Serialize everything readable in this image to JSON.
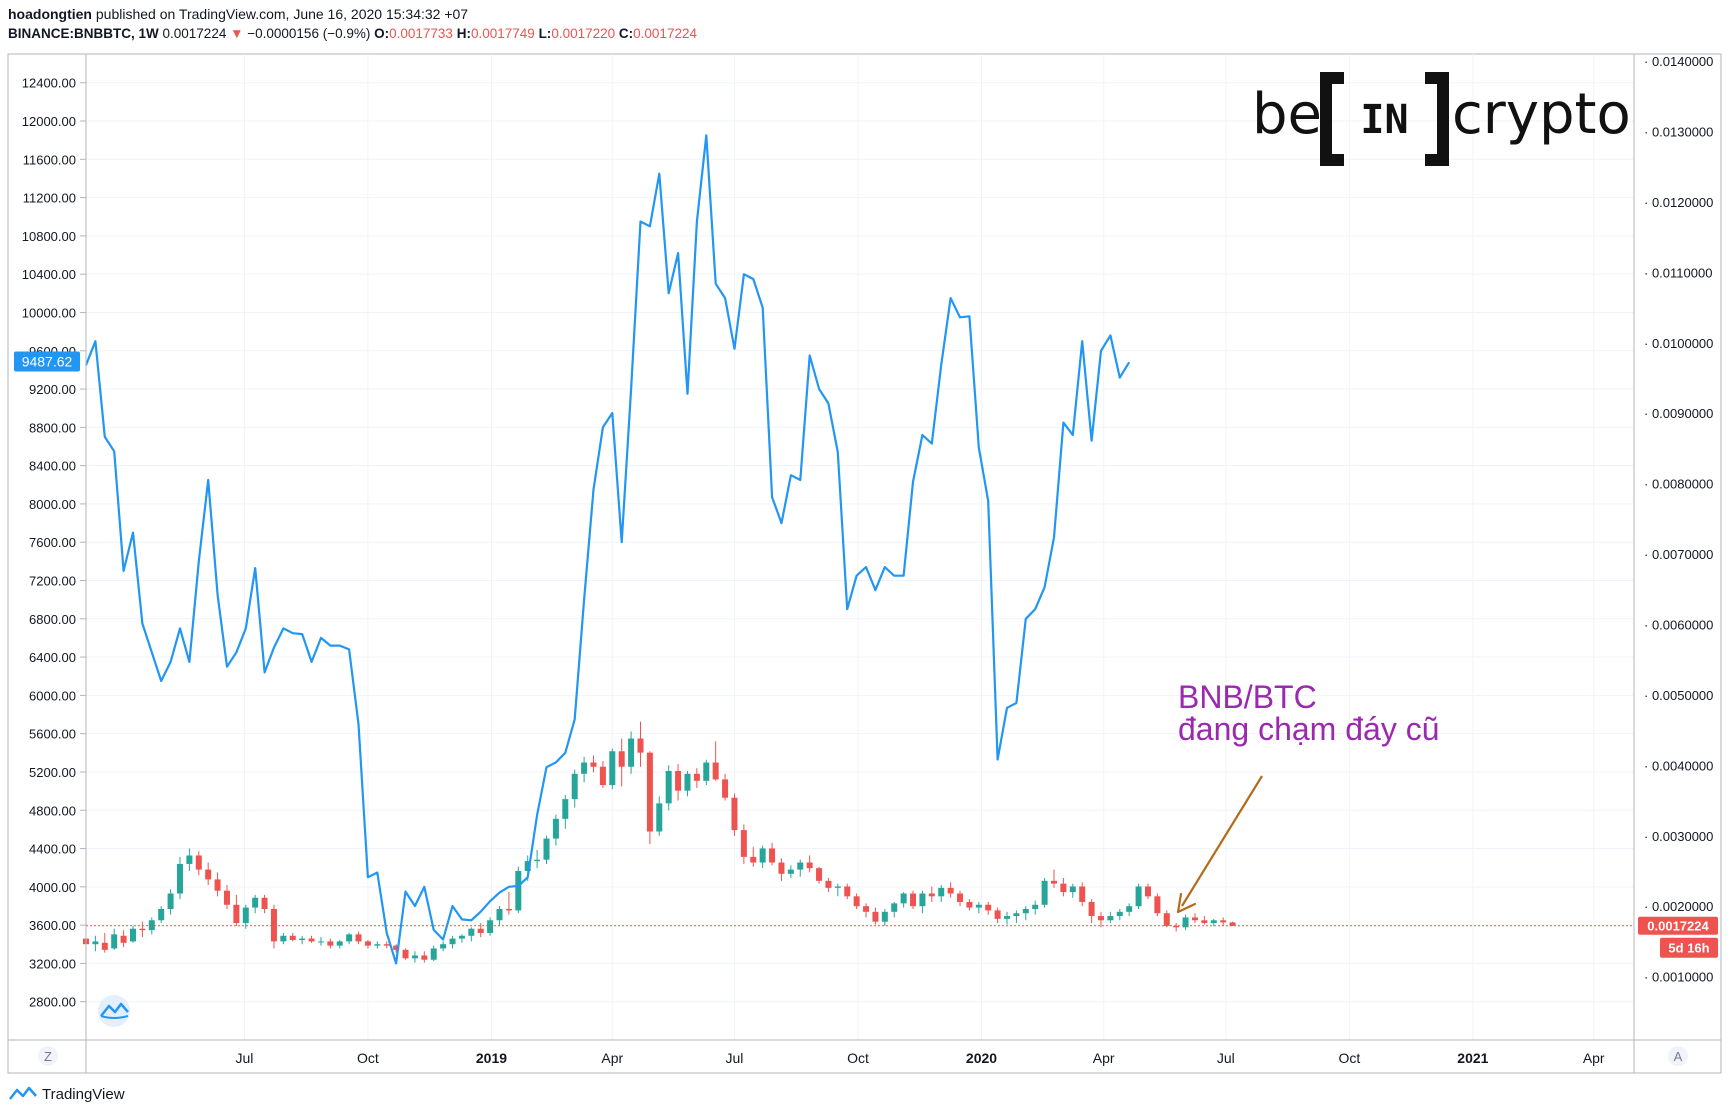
{
  "header": {
    "author": "hoadongtien",
    "published": "published on TradingView.com, June 16, 2020 15:34:32 +07",
    "symbol": "BINANCE:BNBBTC, 1W",
    "last": "0.0017224",
    "change_arrow": "▼",
    "change": "−0.0000156 (−0.9%)",
    "o_label": "O:",
    "o_value": "0.0017733",
    "h_label": "H:",
    "h_value": "0.0017749",
    "l_label": "L:",
    "l_value": "0.0017220",
    "c_label": "C:",
    "c_value": "0.0017224"
  },
  "logo": {
    "text": "be[IN]crypto",
    "left": "be",
    "middle": "IN",
    "right": "crypto"
  },
  "annotation": {
    "line1": "BNB/BTC",
    "line2": "đang chạm đáy cũ",
    "color": "#9c27b0",
    "arrow_color": "#b26b1a"
  },
  "axis_buttons": {
    "left": "Z",
    "right": "A"
  },
  "footer": {
    "brand": "TradingView"
  },
  "colors": {
    "btc_line": "#2196f3",
    "up": "#26a69a",
    "down": "#ef5350",
    "price_line": "#ef5350",
    "grid": "#f0f3fa"
  },
  "chart_data": {
    "type": "line",
    "time_range": [
      "2018-03-05",
      "2021-05-01"
    ],
    "x_ticks": [
      {
        "label": "Jul",
        "date": "2018-07-01"
      },
      {
        "label": "Oct",
        "date": "2018-10-01"
      },
      {
        "label": "2019",
        "date": "2019-01-01",
        "bold": true
      },
      {
        "label": "Apr",
        "date": "2019-04-01"
      },
      {
        "label": "Jul",
        "date": "2019-07-01"
      },
      {
        "label": "Oct",
        "date": "2019-10-01"
      },
      {
        "label": "2020",
        "date": "2020-01-01",
        "bold": true
      },
      {
        "label": "Apr",
        "date": "2020-04-01"
      },
      {
        "label": "Jul",
        "date": "2020-07-01"
      },
      {
        "label": "Oct",
        "date": "2020-10-01"
      },
      {
        "label": "2021",
        "date": "2021-01-01",
        "bold": true
      },
      {
        "label": "Apr",
        "date": "2021-04-01"
      }
    ],
    "left_axis": {
      "ticks": [
        "12400.00",
        "12000.00",
        "11600.00",
        "11200.00",
        "10800.00",
        "10400.00",
        "10000.00",
        "9600.00",
        "9200.00",
        "8800.00",
        "8400.00",
        "8000.00",
        "7600.00",
        "7200.00",
        "6800.00",
        "6400.00",
        "6000.00",
        "5600.00",
        "5200.00",
        "4800.00",
        "4400.00",
        "4000.00",
        "3600.00",
        "3200.00",
        "2800.00"
      ],
      "range": [
        2400,
        12700
      ],
      "current_label": "9487.62"
    },
    "right_axis": {
      "ticks": [
        "0.0140000",
        "0.0130000",
        "0.0120000",
        "0.0110000",
        "0.0100000",
        "0.0090000",
        "0.0080000",
        "0.0070000",
        "0.0060000",
        "0.0050000",
        "0.0040000",
        "0.0030000",
        "0.0020000",
        "0.0010000"
      ],
      "range": [
        0.0001,
        0.0141
      ],
      "current_label": "0.0017224",
      "countdown_label": "5d 16h"
    },
    "series": [
      {
        "name": "BTC",
        "axis": "left",
        "start": "2018-03-05",
        "step_days": 7,
        "values": [
          9450,
          9700,
          8700,
          8550,
          7300,
          7700,
          6750,
          6450,
          6150,
          6350,
          6700,
          6350,
          7400,
          8250,
          7050,
          6300,
          6450,
          6700,
          7330,
          6240,
          6500,
          6700,
          6650,
          6640,
          6350,
          6600,
          6520,
          6520,
          6480,
          5700,
          4100,
          4150,
          3520,
          3200,
          3950,
          3800,
          4000,
          3550,
          3450,
          3800,
          3660,
          3650,
          3740,
          3850,
          3940,
          4000,
          4010,
          4100,
          4750,
          5250,
          5300,
          5400,
          5750,
          7000,
          8150,
          8800,
          8950,
          7600,
          9200,
          10950,
          10900,
          11450,
          10200,
          10620,
          9150,
          10950,
          11850,
          10300,
          10150,
          9620,
          10400,
          10350,
          10050,
          8070,
          7800,
          8300,
          8250,
          9550,
          9200,
          9050,
          8540,
          6900,
          7250,
          7340,
          7100,
          7340,
          7250,
          7250,
          8230,
          8720,
          8630,
          9450,
          10150,
          9950,
          9960,
          8590,
          8030,
          5330,
          5870,
          5920,
          6800,
          6900,
          7130,
          7650,
          8850,
          8720,
          9700,
          8660,
          9600,
          9760,
          9320,
          9480
        ]
      },
      {
        "name": "BNB/BTC",
        "axis": "right",
        "type": "candlestick",
        "start": "2018-03-05",
        "step_days": 7,
        "ohlc": [
          [
            0.00154,
            0.00162,
            0.00138,
            0.00146
          ],
          [
            0.00146,
            0.00158,
            0.00136,
            0.0015
          ],
          [
            0.00148,
            0.00162,
            0.00134,
            0.00138
          ],
          [
            0.0014,
            0.00168,
            0.00138,
            0.0016
          ],
          [
            0.00158,
            0.00166,
            0.00142,
            0.00148
          ],
          [
            0.0015,
            0.00172,
            0.00148,
            0.00168
          ],
          [
            0.00168,
            0.00178,
            0.00156,
            0.00166
          ],
          [
            0.00166,
            0.00184,
            0.0016,
            0.0018
          ],
          [
            0.0018,
            0.002,
            0.00176,
            0.00196
          ],
          [
            0.00196,
            0.00224,
            0.00188,
            0.00218
          ],
          [
            0.00218,
            0.0027,
            0.0021,
            0.0026
          ],
          [
            0.0026,
            0.00282,
            0.0025,
            0.00272
          ],
          [
            0.00272,
            0.00278,
            0.00244,
            0.00252
          ],
          [
            0.00252,
            0.00262,
            0.0023,
            0.00238
          ],
          [
            0.00238,
            0.00248,
            0.00214,
            0.00222
          ],
          [
            0.00222,
            0.0023,
            0.00196,
            0.00202
          ],
          [
            0.00202,
            0.00216,
            0.00172,
            0.00176
          ],
          [
            0.00176,
            0.00202,
            0.00168,
            0.00198
          ],
          [
            0.00198,
            0.00216,
            0.0019,
            0.00212
          ],
          [
            0.00212,
            0.00216,
            0.0019,
            0.00196
          ],
          [
            0.00196,
            0.00202,
            0.0014,
            0.0015
          ],
          [
            0.0015,
            0.00162,
            0.00146,
            0.00158
          ],
          [
            0.00158,
            0.00162,
            0.0015,
            0.00152
          ],
          [
            0.00152,
            0.00158,
            0.00146,
            0.00154
          ],
          [
            0.00154,
            0.00158,
            0.00148,
            0.0015
          ],
          [
            0.0015,
            0.00156,
            0.00144,
            0.0015
          ],
          [
            0.0015,
            0.00154,
            0.0014,
            0.00144
          ],
          [
            0.00144,
            0.00152,
            0.0014,
            0.0015
          ],
          [
            0.0015,
            0.00162,
            0.00146,
            0.0016
          ],
          [
            0.0016,
            0.00164,
            0.00146,
            0.0015
          ],
          [
            0.0015,
            0.00152,
            0.0014,
            0.00144
          ],
          [
            0.00144,
            0.0015,
            0.0014,
            0.00146
          ],
          [
            0.00146,
            0.0015,
            0.0014,
            0.00144
          ],
          [
            0.00144,
            0.00146,
            0.00134,
            0.00138
          ],
          [
            0.00138,
            0.0014,
            0.00124,
            0.00126
          ],
          [
            0.00126,
            0.00136,
            0.0012,
            0.0013
          ],
          [
            0.0013,
            0.00136,
            0.0012,
            0.00124
          ],
          [
            0.00124,
            0.00144,
            0.00122,
            0.0014
          ],
          [
            0.0014,
            0.0015,
            0.00136,
            0.00146
          ],
          [
            0.00146,
            0.00158,
            0.0014,
            0.00154
          ],
          [
            0.00154,
            0.0016,
            0.00148,
            0.00158
          ],
          [
            0.00158,
            0.0017,
            0.0015,
            0.00168
          ],
          [
            0.00168,
            0.00176,
            0.00156,
            0.00162
          ],
          [
            0.00162,
            0.00184,
            0.00158,
            0.0018
          ],
          [
            0.0018,
            0.002,
            0.00172,
            0.00196
          ],
          [
            0.00196,
            0.0022,
            0.00188,
            0.00194
          ],
          [
            0.00194,
            0.00256,
            0.0019,
            0.0025
          ],
          [
            0.0025,
            0.00272,
            0.00236,
            0.00264
          ],
          [
            0.00264,
            0.0028,
            0.00254,
            0.00266
          ],
          [
            0.00266,
            0.003,
            0.0026,
            0.00296
          ],
          [
            0.00296,
            0.0033,
            0.00286,
            0.00324
          ],
          [
            0.00324,
            0.00358,
            0.0031,
            0.00352
          ],
          [
            0.00352,
            0.00394,
            0.0034,
            0.00388
          ],
          [
            0.00388,
            0.00412,
            0.00376,
            0.00404
          ],
          [
            0.00404,
            0.00414,
            0.0039,
            0.00398
          ],
          [
            0.00398,
            0.00406,
            0.00368,
            0.00372
          ],
          [
            0.00372,
            0.00424,
            0.00366,
            0.0042
          ],
          [
            0.0042,
            0.00438,
            0.0037,
            0.00398
          ],
          [
            0.00398,
            0.00448,
            0.00388,
            0.00438
          ],
          [
            0.00438,
            0.00462,
            0.00398,
            0.00418
          ],
          [
            0.00418,
            0.0042,
            0.00288,
            0.00306
          ],
          [
            0.00306,
            0.00356,
            0.003,
            0.00346
          ],
          [
            0.00346,
            0.004,
            0.00336,
            0.00392
          ],
          [
            0.00392,
            0.00402,
            0.0035,
            0.00364
          ],
          [
            0.00364,
            0.00392,
            0.00356,
            0.00388
          ],
          [
            0.00388,
            0.00396,
            0.00368,
            0.00378
          ],
          [
            0.00378,
            0.00408,
            0.00372,
            0.00404
          ],
          [
            0.00404,
            0.00434,
            0.00378,
            0.0038
          ],
          [
            0.0038,
            0.00388,
            0.0035,
            0.00354
          ],
          [
            0.00354,
            0.0036,
            0.003,
            0.00308
          ],
          [
            0.00308,
            0.00316,
            0.0026,
            0.0027
          ],
          [
            0.0027,
            0.00284,
            0.00256,
            0.00262
          ],
          [
            0.00262,
            0.00286,
            0.00254,
            0.00282
          ],
          [
            0.00282,
            0.0029,
            0.00258,
            0.00262
          ],
          [
            0.00262,
            0.00268,
            0.00236,
            0.00246
          ],
          [
            0.00246,
            0.00258,
            0.0024,
            0.00252
          ],
          [
            0.00252,
            0.00266,
            0.00242,
            0.00262
          ],
          [
            0.00262,
            0.00272,
            0.00248,
            0.00254
          ],
          [
            0.00254,
            0.00256,
            0.00232,
            0.00236
          ],
          [
            0.00236,
            0.0024,
            0.0022,
            0.00226
          ],
          [
            0.00226,
            0.00232,
            0.00214,
            0.00228
          ],
          [
            0.00228,
            0.00232,
            0.0021,
            0.00214
          ],
          [
            0.00214,
            0.00218,
            0.00196,
            0.002
          ],
          [
            0.002,
            0.00204,
            0.00184,
            0.00192
          ],
          [
            0.00192,
            0.00198,
            0.00174,
            0.00178
          ],
          [
            0.00178,
            0.00196,
            0.00172,
            0.00192
          ],
          [
            0.00192,
            0.00206,
            0.00184,
            0.00204
          ],
          [
            0.00204,
            0.0022,
            0.00198,
            0.00218
          ],
          [
            0.00218,
            0.00222,
            0.00196,
            0.002
          ],
          [
            0.002,
            0.00222,
            0.0019,
            0.00218
          ],
          [
            0.00218,
            0.00228,
            0.00206,
            0.00214
          ],
          [
            0.00214,
            0.0023,
            0.00206,
            0.00226
          ],
          [
            0.00226,
            0.00234,
            0.00212,
            0.00218
          ],
          [
            0.00218,
            0.00222,
            0.002,
            0.00206
          ],
          [
            0.00206,
            0.0021,
            0.00194,
            0.00198
          ],
          [
            0.00198,
            0.00206,
            0.0019,
            0.00202
          ],
          [
            0.00202,
            0.00206,
            0.00188,
            0.00194
          ],
          [
            0.00194,
            0.00198,
            0.00176,
            0.00182
          ],
          [
            0.00182,
            0.00192,
            0.00174,
            0.00186
          ],
          [
            0.00186,
            0.00194,
            0.00176,
            0.0019
          ],
          [
            0.0019,
            0.002,
            0.0018,
            0.00196
          ],
          [
            0.00196,
            0.00208,
            0.00188,
            0.00202
          ],
          [
            0.00202,
            0.0024,
            0.00198,
            0.00236
          ],
          [
            0.00236,
            0.00252,
            0.00226,
            0.00232
          ],
          [
            0.00232,
            0.0024,
            0.00214,
            0.0022
          ],
          [
            0.0022,
            0.00232,
            0.00212,
            0.00228
          ],
          [
            0.00228,
            0.00234,
            0.002,
            0.00206
          ],
          [
            0.00206,
            0.0021,
            0.00176,
            0.00186
          ],
          [
            0.00186,
            0.00192,
            0.0017,
            0.0018
          ],
          [
            0.0018,
            0.00192,
            0.00176,
            0.00186
          ],
          [
            0.00186,
            0.00196,
            0.0018,
            0.00192
          ],
          [
            0.00192,
            0.00204,
            0.00186,
            0.002
          ],
          [
            0.002,
            0.00232,
            0.00196,
            0.00228
          ],
          [
            0.00228,
            0.00232,
            0.0021,
            0.00214
          ],
          [
            0.00214,
            0.00218,
            0.00186,
            0.0019
          ],
          [
            0.0019,
            0.00194,
            0.0017,
            0.00172
          ],
          [
            0.00172,
            0.00176,
            0.00164,
            0.0017
          ],
          [
            0.0017,
            0.00188,
            0.00166,
            0.00184
          ],
          [
            0.00184,
            0.0019,
            0.00176,
            0.0018
          ],
          [
            0.0018,
            0.00186,
            0.00174,
            0.00176
          ],
          [
            0.00176,
            0.00182,
            0.00172,
            0.0018
          ],
          [
            0.0018,
            0.00184,
            0.00172,
            0.00177
          ],
          [
            0.00177,
            0.00178,
            0.00172,
            0.00172
          ]
        ]
      }
    ]
  }
}
